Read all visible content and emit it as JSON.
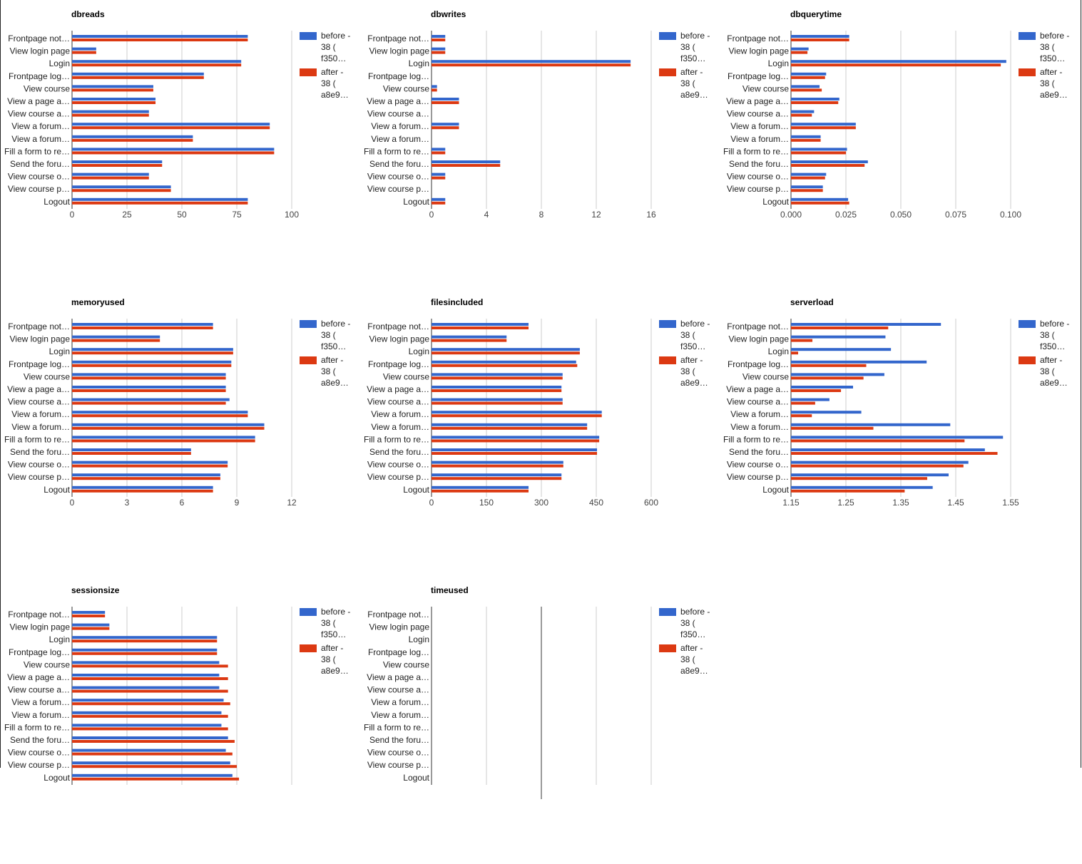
{
  "legend": {
    "before": {
      "lines": [
        "before -",
        "38 (",
        "f350…"
      ],
      "color": "#3366cc"
    },
    "after": {
      "lines": [
        "after -",
        "38 (",
        "a8e9…"
      ],
      "color": "#dc3912"
    }
  },
  "chart_data": [
    {
      "type": "bar",
      "title": "dbreads",
      "categories": [
        "Frontpage not…",
        "View login page",
        "Login",
        "Frontpage log…",
        "View course",
        "View a page a…",
        "View course a…",
        "View a forum…",
        "View a forum…",
        "Fill a form to re…",
        "Send the foru…",
        "View course o…",
        "View course p…",
        "Logout"
      ],
      "xlim": [
        0,
        100
      ],
      "ticks": [
        0,
        25,
        50,
        75,
        100
      ],
      "tick_labels": [
        "0",
        "25",
        "50",
        "75",
        "100"
      ],
      "series": [
        {
          "name": "before - 38 ( f350…",
          "values": [
            80,
            11,
            77,
            60,
            37,
            38,
            35,
            90,
            55,
            92,
            41,
            35,
            45,
            80
          ]
        },
        {
          "name": "after - 38 ( a8e9…",
          "values": [
            80,
            11,
            77,
            60,
            37,
            38,
            35,
            90,
            55,
            92,
            41,
            35,
            45,
            80
          ]
        }
      ]
    },
    {
      "type": "bar",
      "title": "dbwrites",
      "categories": [
        "Frontpage not…",
        "View login page",
        "Login",
        "Frontpage log…",
        "View course",
        "View a page a…",
        "View course a…",
        "View a forum…",
        "View a forum…",
        "Fill a form to re…",
        "Send the foru…",
        "View course o…",
        "View course p…",
        "Logout"
      ],
      "xlim": [
        0,
        16
      ],
      "ticks": [
        0,
        4,
        8,
        12,
        16
      ],
      "tick_labels": [
        "0",
        "4",
        "8",
        "12",
        "16"
      ],
      "series": [
        {
          "name": "before - 38 ( f350…",
          "values": [
            1,
            1,
            14.5,
            0,
            0.4,
            2,
            0,
            2,
            0,
            1,
            5,
            1,
            0,
            1
          ]
        },
        {
          "name": "after - 38 ( a8e9…",
          "values": [
            1,
            1,
            14.5,
            0,
            0.4,
            2,
            0,
            2,
            0,
            1,
            5,
            1,
            0,
            1
          ]
        }
      ]
    },
    {
      "type": "bar",
      "title": "dbquerytime",
      "categories": [
        "Frontpage not…",
        "View login page",
        "Login",
        "Frontpage log…",
        "View course",
        "View a page a…",
        "View course a…",
        "View a forum…",
        "View a forum…",
        "Fill a form to re…",
        "Send the foru…",
        "View course o…",
        "View course p…",
        "Logout"
      ],
      "xlim": [
        0,
        0.1
      ],
      "ticks": [
        0,
        0.025,
        0.05,
        0.075,
        0.1
      ],
      "tick_labels": [
        "0.000",
        "0.025",
        "0.050",
        "0.075",
        "0.100"
      ],
      "series": [
        {
          "name": "before - 38 ( f350…",
          "values": [
            0.0265,
            0.008,
            0.098,
            0.016,
            0.013,
            0.022,
            0.0105,
            0.0295,
            0.0135,
            0.0255,
            0.035,
            0.016,
            0.0145,
            0.026
          ]
        },
        {
          "name": "after - 38 ( a8e9…",
          "values": [
            0.0265,
            0.0075,
            0.0955,
            0.0155,
            0.014,
            0.0215,
            0.0095,
            0.0295,
            0.0135,
            0.025,
            0.0335,
            0.0155,
            0.0145,
            0.0265
          ]
        }
      ]
    },
    {
      "type": "bar",
      "title": "memoryused",
      "categories": [
        "Frontpage not…",
        "View login page",
        "Login",
        "Frontpage log…",
        "View course",
        "View a page a…",
        "View course a…",
        "View a forum…",
        "View a forum…",
        "Fill a form to re…",
        "Send the foru…",
        "View course o…",
        "View course p…",
        "Logout"
      ],
      "xlim": [
        0,
        12
      ],
      "ticks": [
        0,
        3,
        6,
        9,
        12
      ],
      "tick_labels": [
        "0",
        "3",
        "6",
        "9",
        "12"
      ],
      "series": [
        {
          "name": "before - 38 ( f350…",
          "values": [
            7.7,
            4.8,
            8.8,
            8.7,
            8.4,
            8.4,
            8.6,
            9.6,
            10.5,
            10,
            6.5,
            8.5,
            8.1,
            7.7
          ]
        },
        {
          "name": "after - 38 ( a8e9…",
          "values": [
            7.7,
            4.8,
            8.8,
            8.7,
            8.4,
            8.4,
            8.4,
            9.6,
            10.5,
            10,
            6.5,
            8.5,
            8.1,
            7.7
          ]
        }
      ]
    },
    {
      "type": "bar",
      "title": "filesincluded",
      "categories": [
        "Frontpage not…",
        "View login page",
        "Login",
        "Frontpage log…",
        "View course",
        "View a page a…",
        "View course a…",
        "View a forum…",
        "View a forum…",
        "Fill a form to re…",
        "Send the foru…",
        "View course o…",
        "View course p…",
        "Logout"
      ],
      "xlim": [
        0,
        600
      ],
      "ticks": [
        0,
        150,
        300,
        450,
        600
      ],
      "tick_labels": [
        "0",
        "150",
        "300",
        "450",
        "600"
      ],
      "series": [
        {
          "name": "before - 38 ( f350…",
          "values": [
            265,
            205,
            405,
            395,
            358,
            355,
            358,
            465,
            425,
            458,
            452,
            360,
            355,
            265
          ]
        },
        {
          "name": "after - 38 ( a8e9…",
          "values": [
            265,
            205,
            405,
            398,
            358,
            355,
            358,
            465,
            425,
            458,
            452,
            360,
            355,
            265
          ]
        }
      ]
    },
    {
      "type": "bar",
      "title": "serverload",
      "categories": [
        "Frontpage not…",
        "View login page",
        "Login",
        "Frontpage log…",
        "View course",
        "View a page a…",
        "View course a…",
        "View a forum…",
        "View a forum…",
        "Fill a form to re…",
        "Send the foru…",
        "View course o…",
        "View course p…",
        "Logout"
      ],
      "xlim": [
        1.15,
        1.55
      ],
      "ticks": [
        1.15,
        1.25,
        1.35,
        1.45,
        1.55
      ],
      "tick_labels": [
        "1.15",
        "1.25",
        "1.35",
        "1.45",
        "1.55"
      ],
      "series": [
        {
          "name": "before - 38 ( f350…",
          "values": [
            1.423,
            1.322,
            1.332,
            1.397,
            1.32,
            1.263,
            1.22,
            1.278,
            1.44,
            1.536,
            1.503,
            1.473,
            1.437,
            1.408
          ]
        },
        {
          "name": "after - 38 ( a8e9…",
          "values": [
            1.327,
            1.189,
            1.163,
            1.287,
            1.282,
            1.241,
            1.194,
            1.188,
            1.3,
            1.466,
            1.526,
            1.464,
            1.398,
            1.357
          ]
        }
      ]
    },
    {
      "type": "bar",
      "title": "sessionsize",
      "categories": [
        "Frontpage not…",
        "View login page",
        "Login",
        "Frontpage log…",
        "View course",
        "View a page a…",
        "View course a…",
        "View a forum…",
        "View a forum…",
        "Fill a form to re…",
        "Send the foru…",
        "View course o…",
        "View course p…",
        "Logout"
      ],
      "xlim": [
        0,
        100
      ],
      "ticks": [
        0,
        25,
        50,
        75,
        100
      ],
      "tick_labels": [
        "",
        "",
        "",
        "",
        ""
      ],
      "series": [
        {
          "name": "before - 38 ( f350…",
          "values": [
            15,
            17,
            66,
            66,
            67,
            67,
            67,
            69,
            68,
            68,
            71,
            70,
            72,
            73
          ]
        },
        {
          "name": "after - 38 ( a8e9…",
          "values": [
            15,
            17,
            66,
            66,
            71,
            71,
            71,
            72,
            71,
            71,
            74,
            73,
            75,
            76
          ]
        }
      ]
    },
    {
      "type": "bar",
      "title": "timeused",
      "categories": [
        "Frontpage not…",
        "View login page",
        "Login",
        "Frontpage log…",
        "View course",
        "View a page a…",
        "View course a…",
        "View a forum…",
        "View a forum…",
        "Fill a form to re…",
        "Send the foru…",
        "View course o…",
        "View course p…",
        "Logout"
      ],
      "xlim": [
        0,
        1
      ],
      "ticks": [
        0,
        0.25,
        0.5,
        0.75,
        1
      ],
      "tick_labels": [
        "",
        "",
        "",
        "",
        ""
      ],
      "series": [
        {
          "name": "before - 38 ( f350…",
          "values": [
            0,
            0,
            0,
            0,
            0,
            0,
            0,
            0,
            0,
            0,
            0,
            0,
            0,
            0
          ]
        },
        {
          "name": "after - 38 ( a8e9…",
          "values": [
            0,
            0,
            0,
            0,
            0,
            0,
            0,
            0,
            0,
            0,
            0,
            0,
            0,
            0
          ]
        }
      ]
    }
  ]
}
